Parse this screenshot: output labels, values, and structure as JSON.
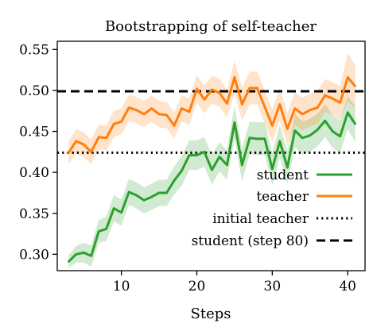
{
  "chart_data": {
    "type": "line",
    "title": "Bootstrapping of self-teacher",
    "xlabel": "Steps",
    "ylabel": "",
    "xlim": [
      1.5,
      42.3
    ],
    "ylim": [
      0.28,
      0.56
    ],
    "xticks": [
      10,
      20,
      30,
      40
    ],
    "yticks": [
      0.3,
      0.35,
      0.4,
      0.45,
      0.5,
      0.55
    ],
    "xtick_labels": [
      "10",
      "20",
      "30",
      "40"
    ],
    "ytick_labels": [
      "0.30",
      "0.35",
      "0.40",
      "0.45",
      "0.50",
      "0.55"
    ],
    "grid": false,
    "legend_position": "lower-right",
    "series": [
      {
        "name": "student",
        "color": "#2ca02c",
        "style": "solid",
        "x": [
          3,
          4,
          5,
          6,
          7,
          8,
          9,
          10,
          11,
          12,
          13,
          14,
          15,
          16,
          17,
          18,
          19,
          20,
          21,
          22,
          23,
          24,
          25,
          26,
          27,
          28,
          29,
          30,
          31,
          32,
          33,
          34,
          35,
          36,
          37,
          38,
          39,
          40,
          41
        ],
        "values": [
          0.291,
          0.3,
          0.302,
          0.298,
          0.328,
          0.331,
          0.356,
          0.351,
          0.376,
          0.372,
          0.366,
          0.37,
          0.375,
          0.375,
          0.39,
          0.402,
          0.421,
          0.421,
          0.425,
          0.403,
          0.419,
          0.409,
          0.461,
          0.409,
          0.442,
          0.441,
          0.441,
          0.404,
          0.438,
          0.406,
          0.451,
          0.442,
          0.445,
          0.452,
          0.463,
          0.45,
          0.444,
          0.473,
          0.459
        ],
        "band_halfwidth": [
          0.008,
          0.01,
          0.012,
          0.013,
          0.014,
          0.015,
          0.016,
          0.016,
          0.016,
          0.016,
          0.016,
          0.016,
          0.016,
          0.016,
          0.017,
          0.018,
          0.018,
          0.018,
          0.018,
          0.018,
          0.018,
          0.018,
          0.02,
          0.02,
          0.02,
          0.02,
          0.02,
          0.02,
          0.02,
          0.02,
          0.02,
          0.02,
          0.02,
          0.02,
          0.02,
          0.02,
          0.02,
          0.02,
          0.022
        ]
      },
      {
        "name": "teacher",
        "color": "#ff7f0e",
        "style": "solid",
        "x": [
          3,
          4,
          5,
          6,
          7,
          8,
          9,
          10,
          11,
          12,
          13,
          14,
          15,
          16,
          17,
          18,
          19,
          20,
          21,
          22,
          23,
          24,
          25,
          26,
          27,
          28,
          29,
          30,
          31,
          32,
          33,
          34,
          35,
          36,
          37,
          38,
          39,
          40,
          41
        ],
        "values": [
          0.424,
          0.438,
          0.434,
          0.425,
          0.443,
          0.442,
          0.459,
          0.462,
          0.479,
          0.476,
          0.471,
          0.478,
          0.471,
          0.47,
          0.457,
          0.478,
          0.474,
          0.502,
          0.489,
          0.501,
          0.497,
          0.484,
          0.516,
          0.483,
          0.503,
          0.503,
          0.48,
          0.457,
          0.483,
          0.453,
          0.478,
          0.471,
          0.476,
          0.479,
          0.494,
          0.49,
          0.485,
          0.516,
          0.505
        ],
        "band_halfwidth": [
          0.014,
          0.015,
          0.015,
          0.015,
          0.015,
          0.015,
          0.016,
          0.016,
          0.016,
          0.016,
          0.016,
          0.016,
          0.016,
          0.016,
          0.016,
          0.016,
          0.016,
          0.017,
          0.017,
          0.017,
          0.017,
          0.017,
          0.02,
          0.02,
          0.02,
          0.02,
          0.02,
          0.02,
          0.02,
          0.02,
          0.02,
          0.02,
          0.02,
          0.02,
          0.02,
          0.02,
          0.02,
          0.03,
          0.026
        ]
      },
      {
        "name": "initial teacher",
        "color": "#000000",
        "style": "dotted",
        "y": 0.424
      },
      {
        "name": "student (step 80)",
        "color": "#000000",
        "style": "dashed",
        "y": 0.499
      }
    ]
  }
}
